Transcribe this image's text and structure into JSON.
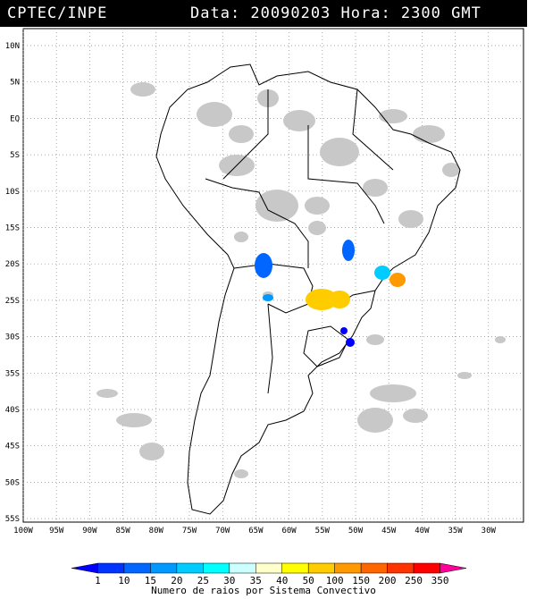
{
  "header": {
    "source": "CPTEC/INPE",
    "date_text": "Data: 20090203 Hora: 2300 GMT"
  },
  "axes": {
    "lat_labels": [
      "10N",
      "5N",
      "EQ",
      "5S",
      "10S",
      "15S",
      "20S",
      "25S",
      "30S",
      "35S",
      "40S",
      "45S",
      "50S",
      "55S"
    ],
    "lon_labels": [
      "100W",
      "95W",
      "90W",
      "85W",
      "80W",
      "75W",
      "70W",
      "65W",
      "60W",
      "55W",
      "50W",
      "45W",
      "40W",
      "35W",
      "30W"
    ]
  },
  "legend": {
    "title": "Numero de raios por Sistema Convectivo",
    "labels": [
      "1",
      "10",
      "15",
      "20",
      "25",
      "30",
      "35",
      "40",
      "50",
      "100",
      "150",
      "200",
      "250",
      "350"
    ],
    "colors": [
      "#0000ff",
      "#0033ff",
      "#0066ff",
      "#0099ff",
      "#00ccff",
      "#00ffff",
      "#ccffff",
      "#ffffcc",
      "#ffff00",
      "#ffcc00",
      "#ff9900",
      "#ff6600",
      "#ff3300",
      "#ff0000",
      "#ff0099"
    ]
  },
  "colors": {
    "cloud_gray": "#c8c8c8",
    "grid": "#888888"
  }
}
